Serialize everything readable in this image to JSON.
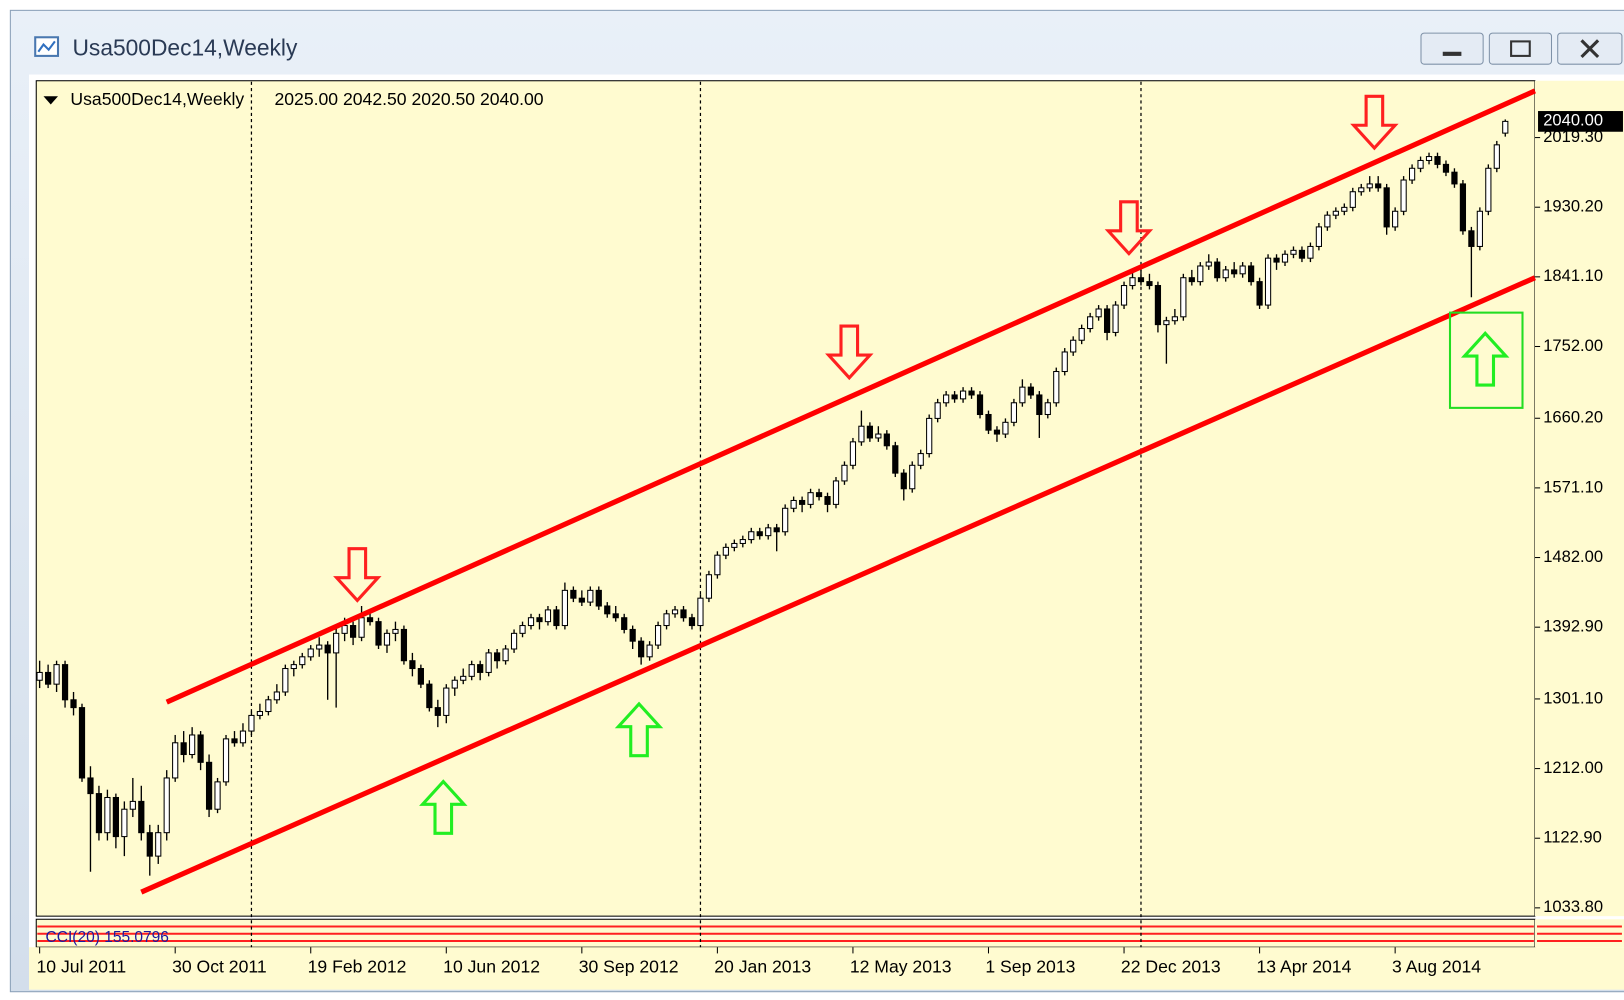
{
  "window": {
    "title": "Usa500Dec14,Weekly"
  },
  "chart_data": {
    "type": "candlestick",
    "header": {
      "symbol": "Usa500Dec14,Weekly",
      "ohlc_label": "2025.00 2042.50 2020.50 2040.00"
    },
    "indicator": {
      "label": "CCI(20) 155.0796"
    },
    "last_price": {
      "value": 2040,
      "label": "2040.00"
    },
    "xlim": [
      -0.4,
      176.5
    ],
    "ylim": [
      1023.2,
      2092
    ],
    "yticks": [
      {
        "value": 2019.3,
        "label": "2019.30"
      },
      {
        "value": 1930.2,
        "label": "1930.20"
      },
      {
        "value": 1841.1,
        "label": "1841.10"
      },
      {
        "value": 1752,
        "label": "1752.00"
      },
      {
        "value": 1660.2,
        "label": "1660.20"
      },
      {
        "value": 1571.1,
        "label": "1571.10"
      },
      {
        "value": 1482,
        "label": "1482.00"
      },
      {
        "value": 1392.9,
        "label": "1392.90"
      },
      {
        "value": 1301.1,
        "label": "1301.10"
      },
      {
        "value": 1212,
        "label": "1212.00"
      },
      {
        "value": 1122.9,
        "label": "1122.90"
      },
      {
        "value": 1033.8,
        "label": "1033.80"
      }
    ],
    "xticks": [
      {
        "value": 0,
        "label": "10 Jul 2011"
      },
      {
        "value": 16,
        "label": "30 Oct 2011"
      },
      {
        "value": 32,
        "label": "19 Feb 2012"
      },
      {
        "value": 48,
        "label": "10 Jun 2012"
      },
      {
        "value": 64,
        "label": "30 Sep 2012"
      },
      {
        "value": 80,
        "label": "20 Jan 2013"
      },
      {
        "value": 96,
        "label": "12 May 2013"
      },
      {
        "value": 112,
        "label": "1 Sep 2013"
      },
      {
        "value": 128,
        "label": "22 Dec 2013"
      },
      {
        "value": 144,
        "label": "13 Apr 2014"
      },
      {
        "value": 160,
        "label": "3 Aug 2014"
      }
    ],
    "period_separators": [
      25,
      78,
      130
    ],
    "trendlines": [
      {
        "color": "#ff0000",
        "x": [
          15,
          176.5
        ],
        "values": [
          1297,
          2079
        ]
      },
      {
        "color": "#ff0000",
        "x": [
          12,
          176.5
        ],
        "values": [
          1054,
          1840
        ]
      }
    ],
    "ohlc": [
      [
        1325,
        1350,
        1315,
        1335
      ],
      [
        1335,
        1345,
        1315,
        1320
      ],
      [
        1320,
        1350,
        1310,
        1345
      ],
      [
        1345,
        1350,
        1290,
        1300
      ],
      [
        1300,
        1310,
        1280,
        1290
      ],
      [
        1290,
        1295,
        1195,
        1200
      ],
      [
        1200,
        1215,
        1080,
        1180
      ],
      [
        1180,
        1190,
        1120,
        1130
      ],
      [
        1130,
        1185,
        1120,
        1175
      ],
      [
        1175,
        1180,
        1110,
        1125
      ],
      [
        1125,
        1170,
        1100,
        1160
      ],
      [
        1160,
        1200,
        1150,
        1170
      ],
      [
        1170,
        1190,
        1120,
        1130
      ],
      [
        1130,
        1140,
        1075,
        1100
      ],
      [
        1100,
        1140,
        1090,
        1130
      ],
      [
        1130,
        1210,
        1120,
        1200
      ],
      [
        1200,
        1255,
        1195,
        1245
      ],
      [
        1245,
        1260,
        1220,
        1230
      ],
      [
        1230,
        1265,
        1225,
        1255
      ],
      [
        1255,
        1260,
        1210,
        1220
      ],
      [
        1220,
        1230,
        1150,
        1160
      ],
      [
        1160,
        1200,
        1155,
        1195
      ],
      [
        1195,
        1255,
        1190,
        1250
      ],
      [
        1250,
        1260,
        1240,
        1245
      ],
      [
        1245,
        1270,
        1240,
        1260
      ],
      [
        1260,
        1285,
        1255,
        1280
      ],
      [
        1280,
        1295,
        1275,
        1285
      ],
      [
        1285,
        1305,
        1280,
        1300
      ],
      [
        1300,
        1320,
        1295,
        1310
      ],
      [
        1310,
        1345,
        1305,
        1340
      ],
      [
        1340,
        1350,
        1330,
        1345
      ],
      [
        1345,
        1360,
        1340,
        1355
      ],
      [
        1355,
        1370,
        1350,
        1365
      ],
      [
        1365,
        1380,
        1355,
        1370
      ],
      [
        1370,
        1375,
        1300,
        1360
      ],
      [
        1360,
        1395,
        1290,
        1385
      ],
      [
        1385,
        1405,
        1375,
        1395
      ],
      [
        1395,
        1400,
        1370,
        1380
      ],
      [
        1380,
        1420,
        1375,
        1405
      ],
      [
        1405,
        1415,
        1395,
        1400
      ],
      [
        1400,
        1405,
        1365,
        1370
      ],
      [
        1370,
        1390,
        1360,
        1385
      ],
      [
        1385,
        1400,
        1375,
        1390
      ],
      [
        1390,
        1395,
        1345,
        1350
      ],
      [
        1350,
        1360,
        1330,
        1340
      ],
      [
        1340,
        1345,
        1315,
        1320
      ],
      [
        1320,
        1325,
        1285,
        1290
      ],
      [
        1290,
        1300,
        1265,
        1280
      ],
      [
        1280,
        1320,
        1270,
        1315
      ],
      [
        1315,
        1330,
        1305,
        1325
      ],
      [
        1325,
        1340,
        1320,
        1330
      ],
      [
        1330,
        1350,
        1325,
        1345
      ],
      [
        1345,
        1350,
        1325,
        1335
      ],
      [
        1335,
        1365,
        1330,
        1360
      ],
      [
        1360,
        1365,
        1340,
        1350
      ],
      [
        1350,
        1370,
        1345,
        1365
      ],
      [
        1365,
        1390,
        1360,
        1385
      ],
      [
        1385,
        1400,
        1380,
        1395
      ],
      [
        1395,
        1410,
        1390,
        1405
      ],
      [
        1405,
        1410,
        1390,
        1400
      ],
      [
        1400,
        1420,
        1395,
        1415
      ],
      [
        1415,
        1420,
        1390,
        1395
      ],
      [
        1395,
        1450,
        1390,
        1440
      ],
      [
        1440,
        1445,
        1425,
        1430
      ],
      [
        1430,
        1440,
        1420,
        1425
      ],
      [
        1425,
        1445,
        1420,
        1440
      ],
      [
        1440,
        1445,
        1415,
        1420
      ],
      [
        1420,
        1425,
        1405,
        1410
      ],
      [
        1410,
        1420,
        1400,
        1405
      ],
      [
        1405,
        1410,
        1385,
        1390
      ],
      [
        1390,
        1395,
        1365,
        1375
      ],
      [
        1375,
        1380,
        1345,
        1355
      ],
      [
        1355,
        1375,
        1350,
        1370
      ],
      [
        1370,
        1400,
        1365,
        1395
      ],
      [
        1395,
        1415,
        1390,
        1410
      ],
      [
        1410,
        1420,
        1405,
        1415
      ],
      [
        1415,
        1420,
        1400,
        1405
      ],
      [
        1405,
        1410,
        1390,
        1395
      ],
      [
        1395,
        1435,
        1390,
        1430
      ],
      [
        1430,
        1465,
        1425,
        1460
      ],
      [
        1460,
        1490,
        1455,
        1485
      ],
      [
        1485,
        1500,
        1480,
        1495
      ],
      [
        1495,
        1505,
        1490,
        1500
      ],
      [
        1500,
        1510,
        1495,
        1505
      ],
      [
        1505,
        1520,
        1500,
        1515
      ],
      [
        1515,
        1520,
        1505,
        1510
      ],
      [
        1510,
        1525,
        1505,
        1520
      ],
      [
        1520,
        1525,
        1490,
        1515
      ],
      [
        1515,
        1550,
        1510,
        1545
      ],
      [
        1545,
        1560,
        1540,
        1555
      ],
      [
        1555,
        1560,
        1540,
        1550
      ],
      [
        1550,
        1570,
        1545,
        1565
      ],
      [
        1565,
        1570,
        1555,
        1560
      ],
      [
        1560,
        1565,
        1540,
        1550
      ],
      [
        1550,
        1585,
        1545,
        1580
      ],
      [
        1580,
        1605,
        1575,
        1600
      ],
      [
        1600,
        1635,
        1595,
        1630
      ],
      [
        1630,
        1670,
        1625,
        1650
      ],
      [
        1650,
        1655,
        1630,
        1635
      ],
      [
        1635,
        1650,
        1630,
        1640
      ],
      [
        1640,
        1645,
        1620,
        1625
      ],
      [
        1625,
        1630,
        1585,
        1590
      ],
      [
        1590,
        1595,
        1555,
        1570
      ],
      [
        1570,
        1605,
        1565,
        1600
      ],
      [
        1600,
        1620,
        1595,
        1615
      ],
      [
        1615,
        1665,
        1610,
        1660
      ],
      [
        1660,
        1685,
        1655,
        1680
      ],
      [
        1680,
        1695,
        1675,
        1690
      ],
      [
        1690,
        1695,
        1680,
        1685
      ],
      [
        1685,
        1700,
        1680,
        1695
      ],
      [
        1695,
        1700,
        1685,
        1690
      ],
      [
        1690,
        1695,
        1660,
        1665
      ],
      [
        1665,
        1670,
        1640,
        1645
      ],
      [
        1645,
        1650,
        1630,
        1640
      ],
      [
        1640,
        1660,
        1635,
        1655
      ],
      [
        1655,
        1685,
        1650,
        1680
      ],
      [
        1680,
        1710,
        1675,
        1700
      ],
      [
        1700,
        1705,
        1685,
        1690
      ],
      [
        1690,
        1695,
        1635,
        1665
      ],
      [
        1665,
        1685,
        1660,
        1680
      ],
      [
        1680,
        1725,
        1675,
        1720
      ],
      [
        1720,
        1750,
        1715,
        1745
      ],
      [
        1745,
        1765,
        1740,
        1760
      ],
      [
        1760,
        1780,
        1755,
        1775
      ],
      [
        1775,
        1795,
        1770,
        1790
      ],
      [
        1790,
        1805,
        1785,
        1800
      ],
      [
        1800,
        1805,
        1760,
        1770
      ],
      [
        1770,
        1810,
        1765,
        1805
      ],
      [
        1805,
        1835,
        1800,
        1830
      ],
      [
        1830,
        1850,
        1825,
        1840
      ],
      [
        1840,
        1850,
        1830,
        1835
      ],
      [
        1835,
        1845,
        1825,
        1830
      ],
      [
        1830,
        1835,
        1770,
        1780
      ],
      [
        1780,
        1790,
        1730,
        1785
      ],
      [
        1785,
        1800,
        1780,
        1790
      ],
      [
        1790,
        1845,
        1785,
        1840
      ],
      [
        1840,
        1850,
        1830,
        1835
      ],
      [
        1835,
        1860,
        1830,
        1855
      ],
      [
        1855,
        1870,
        1850,
        1860
      ],
      [
        1860,
        1865,
        1835,
        1840
      ],
      [
        1840,
        1855,
        1835,
        1850
      ],
      [
        1850,
        1860,
        1840,
        1845
      ],
      [
        1845,
        1860,
        1840,
        1855
      ],
      [
        1855,
        1860,
        1830,
        1835
      ],
      [
        1835,
        1840,
        1800,
        1805
      ],
      [
        1805,
        1870,
        1800,
        1865
      ],
      [
        1865,
        1870,
        1850,
        1860
      ],
      [
        1860,
        1875,
        1855,
        1870
      ],
      [
        1870,
        1880,
        1865,
        1875
      ],
      [
        1875,
        1880,
        1860,
        1865
      ],
      [
        1865,
        1885,
        1860,
        1880
      ],
      [
        1880,
        1910,
        1875,
        1905
      ],
      [
        1905,
        1925,
        1900,
        1920
      ],
      [
        1920,
        1930,
        1915,
        1925
      ],
      [
        1925,
        1935,
        1920,
        1930
      ],
      [
        1930,
        1955,
        1925,
        1950
      ],
      [
        1950,
        1960,
        1945,
        1955
      ],
      [
        1955,
        1970,
        1950,
        1960
      ],
      [
        1960,
        1970,
        1950,
        1955
      ],
      [
        1955,
        1960,
        1895,
        1905
      ],
      [
        1905,
        1930,
        1900,
        1925
      ],
      [
        1925,
        1970,
        1920,
        1965
      ],
      [
        1965,
        1985,
        1960,
        1980
      ],
      [
        1980,
        1995,
        1975,
        1990
      ],
      [
        1990,
        2000,
        1985,
        1995
      ],
      [
        1995,
        2000,
        1980,
        1985
      ],
      [
        1985,
        1990,
        1970,
        1975
      ],
      [
        1975,
        1980,
        1955,
        1960
      ],
      [
        1960,
        1965,
        1895,
        1900
      ],
      [
        1900,
        1905,
        1815,
        1880
      ],
      [
        1880,
        1930,
        1875,
        1925
      ],
      [
        1925,
        1985,
        1920,
        1980
      ],
      [
        1980,
        2015,
        1975,
        2010
      ],
      [
        2025,
        2042.5,
        2020.5,
        2040
      ]
    ]
  }
}
